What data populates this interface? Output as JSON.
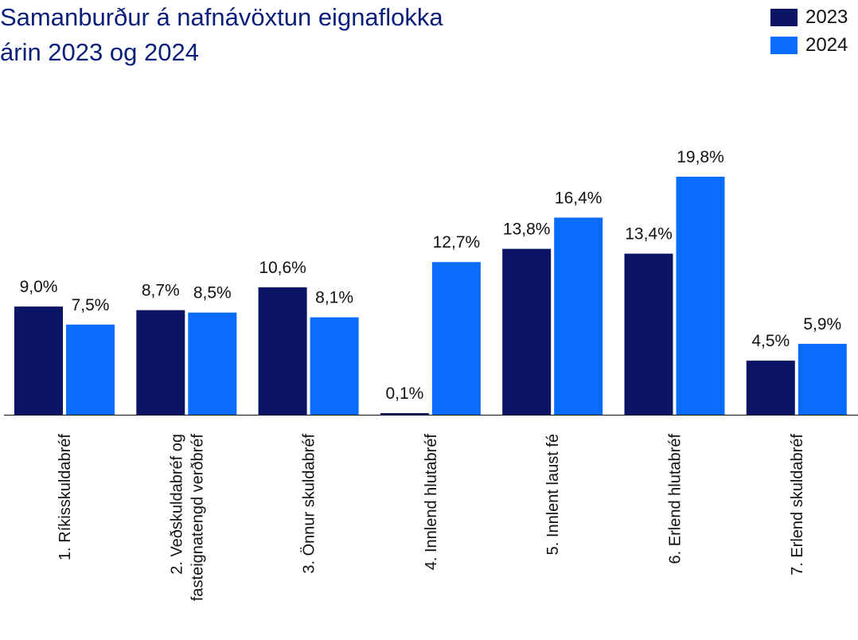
{
  "title_line1": "Samanburður á nafnávöxtun eignaflokka",
  "title_line2": "árin 2023 og 2024",
  "legend": [
    {
      "label": "2023",
      "color": "#0b1464"
    },
    {
      "label": "2024",
      "color": "#0a6cfa"
    }
  ],
  "chart_data": {
    "type": "bar",
    "title": "Samanburður á nafnávöxtun eignaflokka árin 2023 og 2024",
    "categories": [
      [
        "1. Ríkisskuldabréf"
      ],
      [
        "2. Veðskuldabréf og",
        "fasteignatengd verðbréf"
      ],
      [
        "3. Önnur skuldabréf"
      ],
      [
        "4. Innlend hlutabréf"
      ],
      [
        "5. Innlent laust fé"
      ],
      [
        "6. Erlend hlutabréf"
      ],
      [
        "7. Erlend skuldabréf"
      ]
    ],
    "series": [
      {
        "name": "2023",
        "color": "#0b1464",
        "values": [
          9.0,
          8.7,
          10.6,
          0.1,
          13.8,
          13.4,
          4.5
        ],
        "labels": [
          "9,0%",
          "8,7%",
          "10,6%",
          "0,1%",
          "13,8%",
          "13,4%",
          "4,5%"
        ]
      },
      {
        "name": "2024",
        "color": "#0a6cfa",
        "values": [
          7.5,
          8.5,
          8.1,
          12.7,
          16.4,
          19.8,
          5.9
        ],
        "labels": [
          "7,5%",
          "8,5%",
          "8,1%",
          "12,7%",
          "16,4%",
          "19,8%",
          "5,9%"
        ]
      }
    ],
    "ylim": [
      0,
      20
    ],
    "grid": false,
    "legend_position": "top-right"
  }
}
